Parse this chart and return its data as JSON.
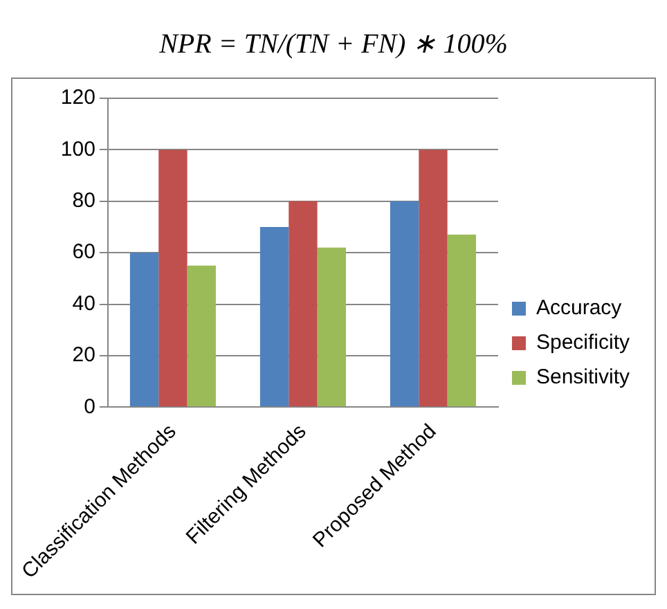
{
  "chart_data": {
    "type": "bar",
    "annotations": [
      "NPR = TN/(TN + FN) ∗ 100%"
    ],
    "categories": [
      "Classification Methods",
      "Filtering Methods",
      "Proposed Method"
    ],
    "series": [
      {
        "name": "Accuracy",
        "color": "#4f81bd",
        "values": [
          60,
          70,
          80
        ]
      },
      {
        "name": "Specificity",
        "color": "#c0504d",
        "values": [
          100,
          80,
          100
        ]
      },
      {
        "name": "Sensitivity",
        "color": "#9bbb59",
        "values": [
          55,
          62,
          67
        ]
      }
    ],
    "ylim": [
      0,
      120
    ],
    "yticks": [
      0,
      20,
      40,
      60,
      80,
      100,
      120
    ],
    "grid": "y",
    "legend": "right"
  }
}
